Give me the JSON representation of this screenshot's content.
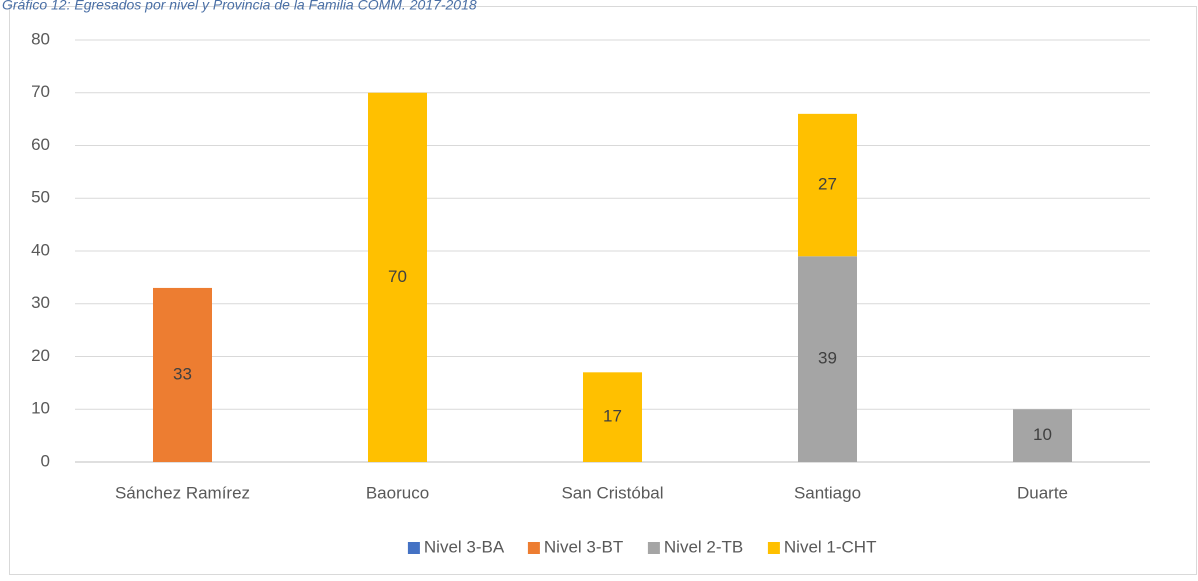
{
  "chart_data": {
    "type": "stacked_bar",
    "title": "Gráfico 12: Egresados por nivel y Provincia de la Familia COMM. 2017-2018",
    "categories": [
      "Sánchez Ramírez",
      "Baoruco",
      "San Cristóbal",
      "Santiago",
      "Duarte"
    ],
    "series": [
      {
        "name": "Nivel 3-BA",
        "color": "#4472c4",
        "values": [
          null,
          null,
          null,
          null,
          null
        ]
      },
      {
        "name": "Nivel 3-BT",
        "color": "#ed7d31",
        "values": [
          33,
          null,
          null,
          null,
          null
        ]
      },
      {
        "name": "Nivel 2-TB",
        "color": "#a5a5a5",
        "values": [
          null,
          null,
          null,
          39,
          10
        ]
      },
      {
        "name": "Nivel 1-CHT",
        "color": "#ffc000",
        "values": [
          null,
          70,
          17,
          27,
          null
        ]
      }
    ],
    "ylim": [
      0,
      80
    ],
    "yticks": [
      0,
      10,
      20,
      30,
      40,
      50,
      60,
      70,
      80
    ],
    "grid": true,
    "legend": "bottom"
  }
}
